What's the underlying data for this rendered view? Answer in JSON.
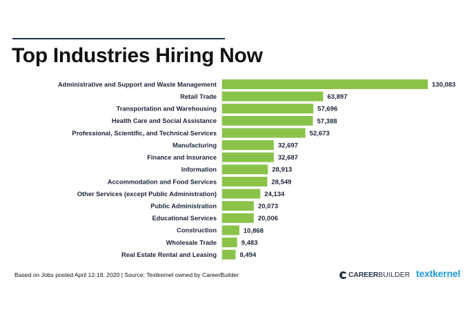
{
  "header": {
    "title": "Top Industries Hiring Now"
  },
  "chart_data": {
    "type": "bar",
    "orientation": "horizontal",
    "title": "Top Industries Hiring Now",
    "xlabel": "",
    "ylabel": "",
    "bar_color": "#8bc34a",
    "xlim": [
      0,
      130083
    ],
    "grid": false,
    "legend": "none",
    "categories": [
      "Administrative and Support and Waste Management",
      "Retail Trade",
      "Transportation and Warehousing",
      "Health Care and Social Assistance",
      "Professional, Scientific, and Technical Services",
      "Manufacturing",
      "Finance and Insurance",
      "Information",
      "Accommodation and Food Services",
      "Other Services (except Public Administration)",
      "Public Administration",
      "Educational Services",
      "Construction",
      "Wholesale Trade",
      "Real Estate Rental and Leasing"
    ],
    "values": [
      130083,
      63897,
      57696,
      57388,
      52673,
      32697,
      32687,
      28913,
      28549,
      24134,
      20073,
      20006,
      10868,
      9483,
      8494
    ],
    "value_labels": [
      "130,083",
      "63,897",
      "57,696",
      "57,388",
      "52,673",
      "32,697",
      "32,687",
      "28,913",
      "28,549",
      "24,134",
      "20,073",
      "20,006",
      "10,868",
      "9,483",
      "8,494"
    ]
  },
  "footer": {
    "note": "Based on Jobs posted April 12-18, 2020  |  Source: Textkernel owned by CareerBuilder",
    "logos": {
      "careerbuilder_bold": "CAREER",
      "careerbuilder_light": "BUILDER",
      "careerbuilder_icon": "careerbuilder-logo-icon",
      "textkernel": "textkernel"
    }
  }
}
